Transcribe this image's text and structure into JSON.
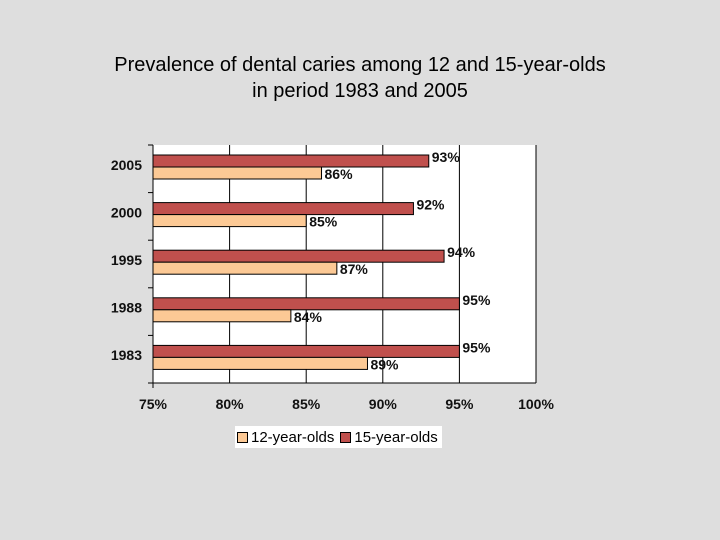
{
  "colors": {
    "background": "#dedede",
    "plot_background": "#ffffff",
    "series_12": "#fcc995",
    "series_15": "#c0504d"
  },
  "chart_data": {
    "type": "bar",
    "orientation": "horizontal",
    "title": "Prevalence of dental caries among 12 and 15-year-olds",
    "subtitle": "in period 1983 and 2005",
    "categories": [
      "2005",
      "2000",
      "1995",
      "1988",
      "1983"
    ],
    "series": [
      {
        "name": "15-year-olds",
        "values": [
          93,
          92,
          94,
          95,
          95
        ],
        "labels": [
          "93%",
          "92%",
          "94%",
          "95%",
          "95%"
        ]
      },
      {
        "name": "12-year-olds",
        "values": [
          86,
          85,
          87,
          84,
          89
        ],
        "labels": [
          "86%",
          "85%",
          "87%",
          "84%",
          "89%"
        ]
      }
    ],
    "xlim": [
      75,
      100
    ],
    "x_ticks": [
      75,
      80,
      85,
      90,
      95,
      100
    ],
    "x_tick_labels": [
      "75%",
      "80%",
      "85%",
      "90%",
      "95%",
      "100%"
    ],
    "legend": [
      "12-year-olds",
      "15-year-olds"
    ],
    "legend_position": "bottom",
    "grid": true
  }
}
